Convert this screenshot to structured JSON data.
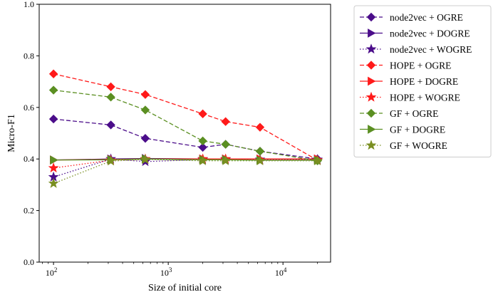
{
  "chart_data": {
    "type": "line",
    "xlabel": "Size of initial core",
    "ylabel": "Micro-F1",
    "xscale": "log",
    "xlim": [
      75,
      26000
    ],
    "ylim": [
      0.0,
      1.0
    ],
    "x_ticks": [
      {
        "value": 100,
        "base": "10",
        "exp": "2"
      },
      {
        "value": 1000,
        "base": "10",
        "exp": "3"
      },
      {
        "value": 10000,
        "base": "10",
        "exp": "4"
      }
    ],
    "y_ticks": [
      "0.0",
      "0.2",
      "0.4",
      "0.6",
      "0.8",
      "1.0"
    ],
    "grid": false,
    "legend_position": "outside-right-top",
    "x": [
      100,
      316,
      631,
      2000,
      3162,
      6310,
      20000
    ],
    "series": [
      {
        "name": "node2vec + OGRE",
        "color": "#4b0d8a",
        "dash": "dashed",
        "marker": "diamond",
        "values": [
          0.555,
          0.532,
          0.48,
          0.445,
          0.457,
          0.43,
          0.4
        ]
      },
      {
        "name": "node2vec + DOGRE",
        "color": "#4b0d8a",
        "dash": "solid",
        "marker": "triangle-right",
        "values": [
          0.396,
          0.4,
          0.402,
          0.4,
          0.4,
          0.4,
          0.4
        ]
      },
      {
        "name": "node2vec + WOGRE",
        "color": "#4b0d8a",
        "dash": "dotted",
        "marker": "star",
        "values": [
          0.33,
          0.4,
          0.39,
          0.398,
          0.398,
          0.398,
          0.398
        ]
      },
      {
        "name": "HOPE + OGRE",
        "color": "#ff1a1a",
        "dash": "dashed",
        "marker": "diamond",
        "values": [
          0.73,
          0.68,
          0.65,
          0.575,
          0.545,
          0.523,
          0.395
        ]
      },
      {
        "name": "HOPE + DOGRE",
        "color": "#ff1a1a",
        "dash": "solid",
        "marker": "triangle-right",
        "values": [
          0.396,
          0.398,
          0.4,
          0.4,
          0.4,
          0.4,
          0.4
        ]
      },
      {
        "name": "HOPE + WOGRE",
        "color": "#ff1a1a",
        "dash": "dotted",
        "marker": "star",
        "values": [
          0.365,
          0.395,
          0.4,
          0.4,
          0.4,
          0.395,
          0.395
        ]
      },
      {
        "name": "GF + OGRE",
        "color": "#5b8f22",
        "dash": "dashed",
        "marker": "diamond",
        "values": [
          0.667,
          0.64,
          0.59,
          0.47,
          0.457,
          0.43,
          0.393
        ]
      },
      {
        "name": "GF + DOGRE",
        "color": "#5b8f22",
        "dash": "solid",
        "marker": "triangle-right",
        "values": [
          0.396,
          0.397,
          0.4,
          0.397,
          0.397,
          0.395,
          0.395
        ]
      },
      {
        "name": "GF + WOGRE",
        "color": "#7a8f22",
        "dash": "dotted",
        "marker": "star",
        "values": [
          0.305,
          0.392,
          0.398,
          0.393,
          0.393,
          0.393,
          0.393
        ]
      }
    ]
  }
}
